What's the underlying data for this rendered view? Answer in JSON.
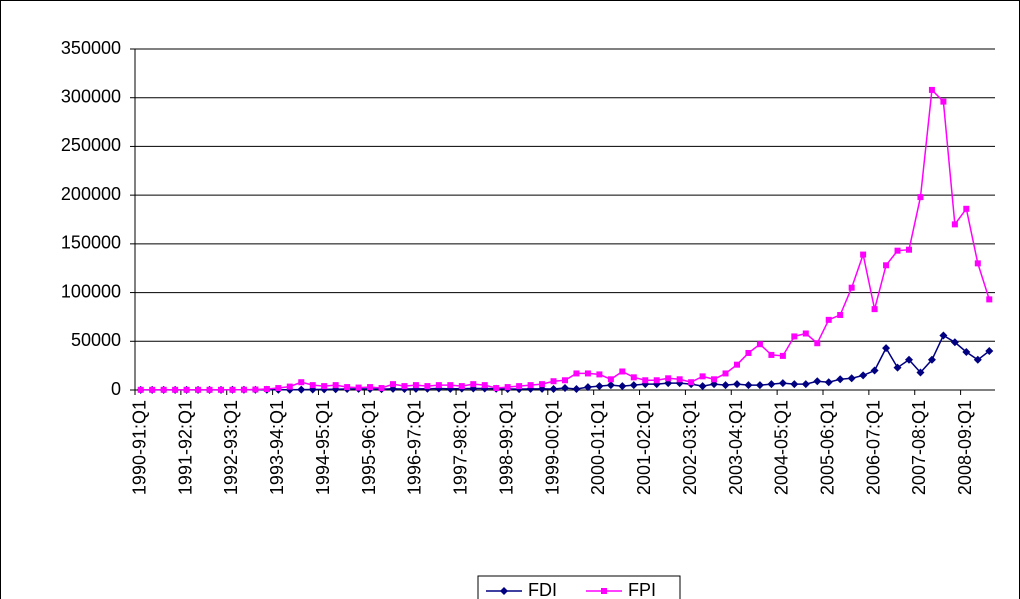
{
  "chart_data": {
    "type": "line",
    "categories": [
      "1990-91:Q1",
      null,
      null,
      null,
      "1991-92:Q1",
      null,
      null,
      null,
      "1992-93:Q1",
      null,
      null,
      null,
      "1993-94:Q1",
      null,
      null,
      null,
      "1994-95:Q1",
      null,
      null,
      null,
      "1995-96:Q1",
      null,
      null,
      null,
      "1996-97:Q1",
      null,
      null,
      null,
      "1997-98:Q1",
      null,
      null,
      null,
      "1998-99:Q1",
      null,
      null,
      null,
      "1999-00:Q1",
      null,
      null,
      null,
      "2000-01:Q1",
      null,
      null,
      null,
      "2001-02:Q1",
      null,
      null,
      null,
      "2002-03:Q1",
      null,
      null,
      null,
      "2003-04:Q1",
      null,
      null,
      null,
      "2004-05:Q1",
      null,
      null,
      null,
      "2005-06:Q1",
      null,
      null,
      null,
      "2006-07:Q1",
      null,
      null,
      null,
      "2007-08:Q1",
      null,
      null,
      null,
      "2008-09:Q1",
      null,
      null
    ],
    "series": [
      {
        "name": "FDI",
        "color": "#000080",
        "marker": "diamond",
        "values": [
          100,
          100,
          100,
          100,
          100,
          100,
          100,
          100,
          200,
          200,
          200,
          200,
          300,
          300,
          400,
          500,
          600,
          800,
          1000,
          1200,
          1000,
          900,
          1100,
          1000,
          1200,
          1300,
          1500,
          1200,
          1400,
          1500,
          1600,
          1300,
          1000,
          900,
          1100,
          1200,
          1000,
          2000,
          1000,
          3000,
          4000,
          5000,
          4000,
          5000,
          6000,
          6000,
          7000,
          7000,
          6000,
          4000,
          6000,
          5000,
          6000,
          5000,
          5000,
          6000,
          7000,
          6000,
          6000,
          9000,
          8000,
          11000,
          12000,
          15000,
          20000,
          43000,
          23000,
          31000,
          18000,
          31000,
          56000,
          49000,
          39000,
          31000,
          40000
        ]
      },
      {
        "name": "FPI",
        "color": "#ff00ff",
        "marker": "square",
        "values": [
          200,
          200,
          200,
          200,
          200,
          200,
          200,
          200,
          200,
          300,
          500,
          1000,
          2000,
          3500,
          8000,
          5000,
          4000,
          5000,
          3000,
          2500,
          3000,
          2000,
          6000,
          4000,
          5000,
          4000,
          5000,
          5000,
          4000,
          6000,
          5000,
          2000,
          3000,
          4000,
          5000,
          6000,
          9000,
          10000,
          17000,
          17000,
          16000,
          11000,
          19000,
          13000,
          10000,
          10000,
          12000,
          11000,
          8000,
          14000,
          11000,
          17000,
          26000,
          38000,
          47000,
          36000,
          35000,
          55000,
          58000,
          48000,
          72000,
          77000,
          105000,
          139000,
          83000,
          128000,
          143000,
          144000,
          198000,
          308000,
          296000,
          170000,
          186000,
          130000,
          93000
        ]
      }
    ],
    "ylim": [
      0,
      350000
    ],
    "yticks": [
      0,
      50000,
      100000,
      150000,
      200000,
      250000,
      300000,
      350000
    ],
    "grid": true,
    "legend": "bottom"
  }
}
